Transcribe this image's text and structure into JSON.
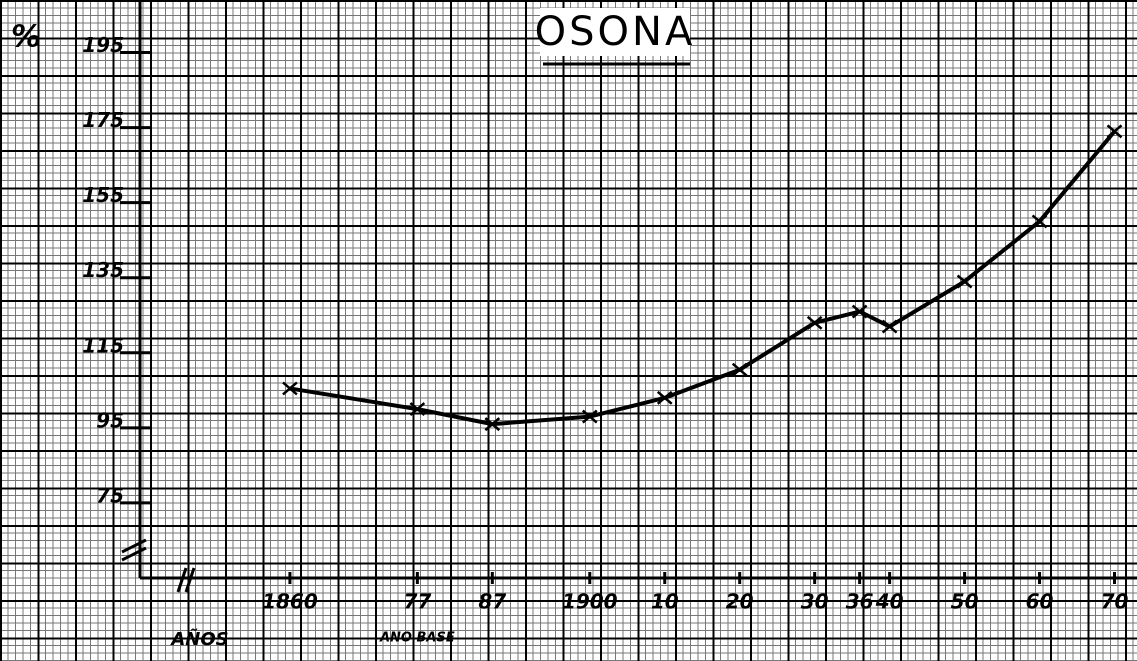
{
  "chart_data": {
    "type": "line",
    "title": "OSONA",
    "y_label": "%",
    "x_label": "AÑOS",
    "annotation": "ANO BASE",
    "x": [
      1860,
      1877,
      1887,
      1900,
      1910,
      1920,
      1930,
      1936,
      1940,
      1950,
      1960,
      1970
    ],
    "series": [
      {
        "color": "#000000",
        "values": [
          105.5,
          100,
          96,
          98,
          103,
          110.5,
          123,
          126,
          122,
          134,
          150,
          174
        ]
      }
    ],
    "xlim": [
      1840,
      1973
    ],
    "ylim": [
      55,
      209
    ],
    "xticks": [
      {
        "value": 1860,
        "label": "1860"
      },
      {
        "value": 1877,
        "label": "77"
      },
      {
        "value": 1887,
        "label": "87"
      },
      {
        "value": 1900,
        "label": "1900"
      },
      {
        "value": 1910,
        "label": "10"
      },
      {
        "value": 1920,
        "label": "20"
      },
      {
        "value": 1930,
        "label": "30"
      },
      {
        "value": 1936,
        "label": "36"
      },
      {
        "value": 1940,
        "label": "40"
      },
      {
        "value": 1950,
        "label": "50"
      },
      {
        "value": 1960,
        "label": "60"
      },
      {
        "value": 1970,
        "label": "70"
      }
    ],
    "yticks": [
      75,
      95,
      115,
      135,
      155,
      175,
      195
    ],
    "annotation_x": 1877
  }
}
